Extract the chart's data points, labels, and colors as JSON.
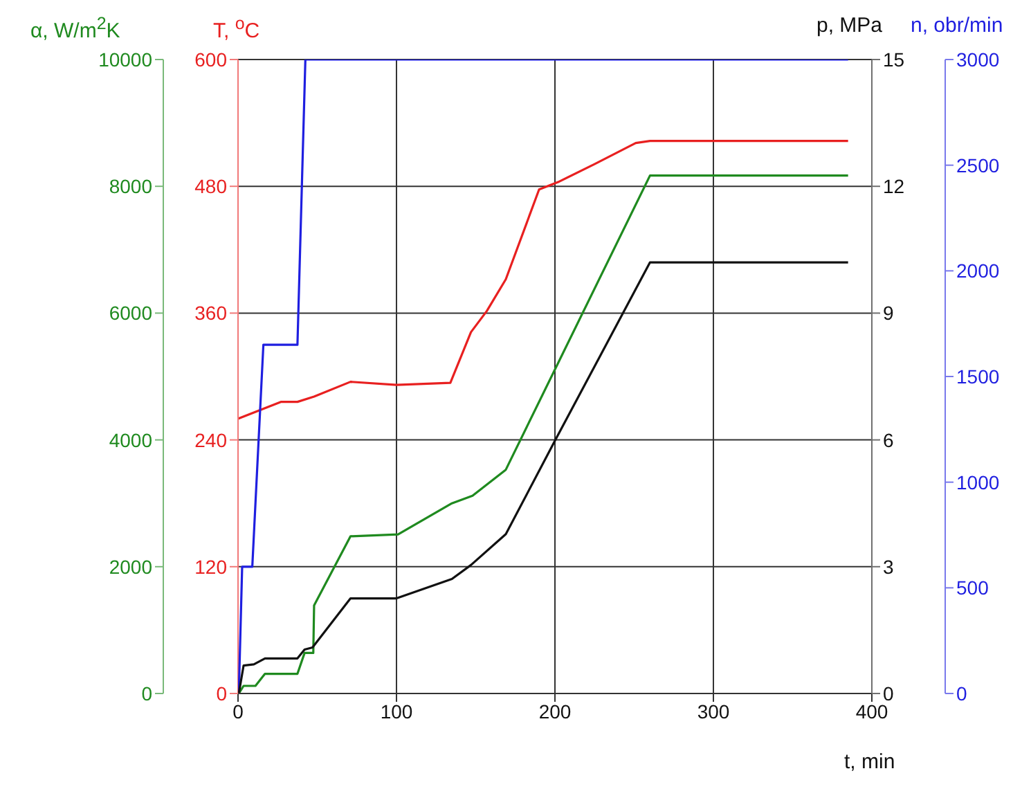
{
  "chart_data": [
    {
      "type": "line",
      "xlabel": "t, min",
      "ylabel": "α, W/m$^{2}$K",
      "y2label": "T, $^{o}$C",
      "xlim": [
        0,
        400
      ],
      "xticks": [
        0,
        100,
        200,
        300,
        400
      ],
      "ylim": [
        0,
        10000
      ],
      "yticks": [
        0,
        2000,
        4000,
        6000,
        8000,
        10000
      ],
      "y2lim": [
        0,
        600
      ],
      "y2ticks": [
        0,
        120,
        240,
        360,
        480,
        600
      ],
      "grid": true,
      "series": [
        {
          "axis": "y2",
          "color": "#e82020",
          "x": [
            0,
            27,
            37.5,
            48,
            71,
            100,
            134,
            147,
            157,
            169,
            190,
            202,
            225,
            251,
            260,
            385
          ],
          "values": [
            260,
            276,
            276,
            281,
            295,
            292,
            294,
            342,
            362,
            392,
            477,
            484,
            501,
            521,
            523,
            523
          ]
        },
        {
          "color": "#1f8a1f",
          "x": [
            0.5,
            3.5,
            11,
            17,
            37.5,
            42,
            47.5,
            48,
            71,
            101,
            135,
            148,
            169,
            260,
            385
          ],
          "values": [
            0,
            120,
            120,
            310,
            310,
            640,
            640,
            1390,
            2480,
            2510,
            3000,
            3120,
            3530,
            8170,
            8170
          ]
        }
      ]
    },
    {
      "type": "line",
      "ylabel": "p, MPa",
      "y2label": "n, obr/min",
      "tick_labels": "y",
      "xlim": [
        0,
        400
      ],
      "ylim": [
        0,
        15
      ],
      "yticks": [
        0,
        3,
        6,
        9,
        12,
        15
      ],
      "y2lim": [
        0,
        3000
      ],
      "y2ticks": [
        0,
        500,
        1000,
        1500,
        2000,
        2500,
        3000
      ],
      "series": [
        {
          "axis": "y2",
          "color": "#1f1fe0",
          "x": [
            0,
            0.5,
            2.6,
            9,
            16,
            37.5,
            42.5,
            385
          ],
          "values": [
            0,
            0,
            600,
            600,
            1650,
            1650,
            3000,
            3000
          ]
        },
        {
          "color": "#111111",
          "x": [
            0.5,
            3.5,
            10,
            17,
            37.5,
            42,
            47,
            71,
            100,
            135,
            147,
            169,
            200,
            260,
            385
          ],
          "values": [
            0,
            0.66,
            0.69,
            0.83,
            0.83,
            1.04,
            1.09,
            2.25,
            2.25,
            2.71,
            3.04,
            3.77,
            5.98,
            10.2,
            10.2
          ]
        }
      ]
    }
  ]
}
